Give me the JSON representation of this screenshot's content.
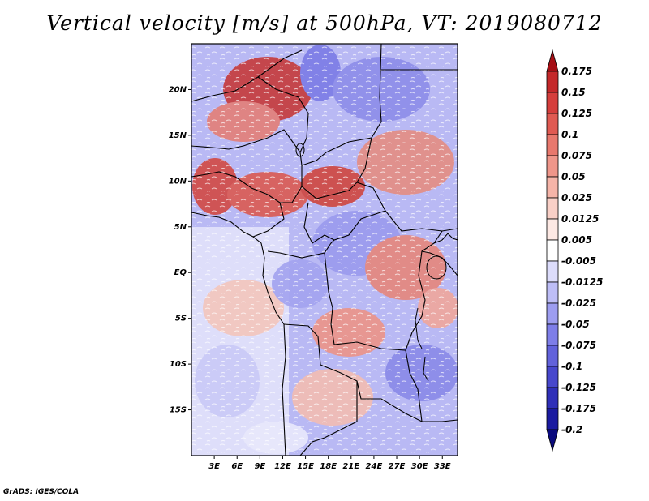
{
  "title": "Vertical velocity [m/s] at 500hPa, VT: 2019080712",
  "credit": "GrADS: IGES/COLA",
  "map": {
    "lat_labels": [
      "20N",
      "15N",
      "10N",
      "5N",
      "EQ",
      "5S",
      "10S",
      "15S"
    ],
    "lat_values": [
      20,
      15,
      10,
      5,
      0,
      -5,
      -10,
      -15
    ],
    "lon_labels": [
      "3E",
      "6E",
      "9E",
      "12E",
      "15E",
      "18E",
      "21E",
      "24E",
      "27E",
      "30E",
      "33E"
    ],
    "lon_values": [
      3,
      6,
      9,
      12,
      15,
      18,
      21,
      24,
      27,
      30,
      33
    ],
    "lon_range": [
      0,
      35
    ],
    "lat_range": [
      -20,
      25
    ]
  },
  "colorbar": {
    "labels": [
      "0.175",
      "0.15",
      "0.125",
      "0.1",
      "0.075",
      "0.05",
      "0.025",
      "0.0125",
      "0.005",
      "-0.005",
      "-0.0125",
      "-0.025",
      "-0.05",
      "-0.075",
      "-0.1",
      "-0.125",
      "-0.175",
      "-0.2"
    ],
    "colors": [
      "#a50f15",
      "#c4282a",
      "#d53e3c",
      "#e05a52",
      "#e8786d",
      "#ef968a",
      "#f5b4a8",
      "#f9d0c7",
      "#fde9e4",
      "#ffffff",
      "#dcdcfb",
      "#bdbdf6",
      "#9d9df0",
      "#7e7ee8",
      "#6262db",
      "#4747cc",
      "#2f2fb8",
      "#1a1aa0",
      "#0b0b7d"
    ]
  }
}
